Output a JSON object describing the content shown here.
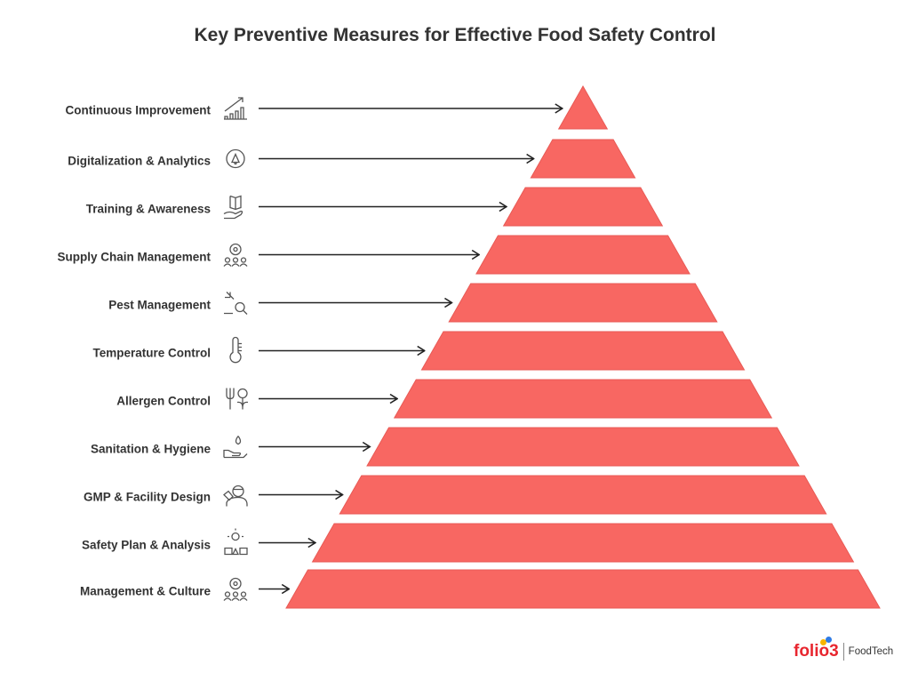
{
  "title": "Key Preventive Measures for Effective Food Safety Control",
  "levels": [
    {
      "label": "Continuous Improvement",
      "icon": "growth-chart-icon"
    },
    {
      "label": "Digitalization & Analytics",
      "icon": "gear-alert-icon"
    },
    {
      "label": "Training & Awareness",
      "icon": "book-hand-icon"
    },
    {
      "label": "Supply Chain Management",
      "icon": "gear-people-icon"
    },
    {
      "label": "Pest Management",
      "icon": "bug-search-icon"
    },
    {
      "label": "Temperature Control",
      "icon": "thermometer-icon"
    },
    {
      "label": "Allergen Control",
      "icon": "fork-leaf-icon"
    },
    {
      "label": "Sanitation & Hygiene",
      "icon": "hand-droplet-icon"
    },
    {
      "label": "GMP & Facility Design",
      "icon": "worker-icon"
    },
    {
      "label": "Safety Plan & Analysis",
      "icon": "idea-shapes-icon"
    },
    {
      "label": "Management & Culture",
      "icon": "gear-people-icon"
    }
  ],
  "colors": {
    "pyramid": "#f86762",
    "arrow": "#222222",
    "icon": "#555555",
    "brand": "#e8262f"
  },
  "logo": {
    "brand": "folio3",
    "product": "FoodTech"
  }
}
